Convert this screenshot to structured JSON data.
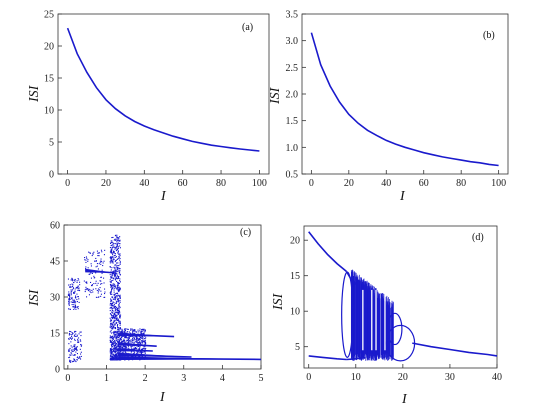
{
  "chart_data": [
    {
      "id": "a",
      "type": "line",
      "panel_label": "(a)",
      "xlabel": "I",
      "ylabel": "ISI",
      "xlim": [
        -5,
        105
      ],
      "ylim": [
        0,
        25
      ],
      "xticks": [
        "0",
        "20",
        "40",
        "60",
        "80",
        "100"
      ],
      "xtick_values": [
        0,
        20,
        40,
        60,
        80,
        100
      ],
      "yticks": [
        "0",
        "5",
        "10",
        "15",
        "20",
        "25"
      ],
      "ytick_values": [
        0,
        5,
        10,
        15,
        20,
        25
      ],
      "color": "#1a1acc",
      "series": [
        {
          "x": [
            0,
            5,
            10,
            15,
            20,
            25,
            30,
            35,
            40,
            45,
            50,
            55,
            60,
            65,
            70,
            75,
            80,
            85,
            90,
            95,
            100
          ],
          "y": [
            22.8,
            18.8,
            15.9,
            13.5,
            11.6,
            10.2,
            9.1,
            8.2,
            7.5,
            6.9,
            6.4,
            5.9,
            5.5,
            5.1,
            4.8,
            4.5,
            4.3,
            4.1,
            3.9,
            3.75,
            3.6
          ]
        }
      ]
    },
    {
      "id": "b",
      "type": "line",
      "panel_label": "(b)",
      "xlabel": "I",
      "ylabel": "ISI",
      "xlim": [
        -5,
        105
      ],
      "ylim": [
        0.5,
        3.5
      ],
      "xticks": [
        "0",
        "20",
        "40",
        "60",
        "80",
        "100"
      ],
      "xtick_values": [
        0,
        20,
        40,
        60,
        80,
        100
      ],
      "yticks": [
        "0.5",
        "1.0",
        "1.5",
        "2.0",
        "2.5",
        "3.0",
        "3.5"
      ],
      "ytick_values": [
        0.5,
        1.0,
        1.5,
        2.0,
        2.5,
        3.0,
        3.5
      ],
      "color": "#1a1acc",
      "series": [
        {
          "x": [
            0,
            5,
            10,
            15,
            20,
            25,
            30,
            35,
            40,
            45,
            50,
            55,
            60,
            65,
            70,
            75,
            80,
            85,
            90,
            95,
            100
          ],
          "y": [
            3.15,
            2.55,
            2.15,
            1.85,
            1.62,
            1.45,
            1.32,
            1.22,
            1.13,
            1.06,
            1.0,
            0.95,
            0.9,
            0.86,
            0.82,
            0.79,
            0.76,
            0.73,
            0.71,
            0.68,
            0.66
          ]
        }
      ]
    },
    {
      "id": "c",
      "type": "scatter",
      "panel_label": "(c)",
      "xlabel": "I",
      "ylabel": "ISI",
      "xlim": [
        -0.1,
        5
      ],
      "ylim": [
        0,
        60
      ],
      "xticks": [
        "0",
        "1",
        "2",
        "3",
        "4",
        "5"
      ],
      "xtick_values": [
        0,
        1,
        2,
        3,
        4,
        5
      ],
      "yticks": [
        "0",
        "15",
        "30",
        "45",
        "60"
      ],
      "ytick_values": [
        0,
        15,
        30,
        45,
        60
      ],
      "color": "#1a1acc",
      "clusters": [
        {
          "x": [
            0.0,
            0.35
          ],
          "y": [
            3,
            16
          ]
        },
        {
          "x": [
            0.0,
            0.3
          ],
          "y": [
            25,
            38
          ]
        },
        {
          "x": [
            0.4,
            0.95
          ],
          "y": [
            30,
            50
          ]
        },
        {
          "x": [
            1.08,
            1.35
          ],
          "y": [
            4,
            56
          ]
        },
        {
          "x": [
            1.35,
            2.0
          ],
          "y": [
            4,
            17
          ]
        }
      ],
      "branches": [
        {
          "x": [
            0.45,
            1.25
          ],
          "y": [
            41,
            40
          ]
        },
        {
          "x": [
            1.3,
            2.75
          ],
          "y": [
            14.5,
            13.5
          ]
        },
        {
          "x": [
            1.3,
            2.3
          ],
          "y": [
            10.5,
            9.5
          ]
        },
        {
          "x": [
            1.3,
            2.2
          ],
          "y": [
            8,
            7.5
          ]
        },
        {
          "x": [
            1.3,
            3.2
          ],
          "y": [
            6,
            5
          ]
        },
        {
          "x": [
            1.3,
            5.0
          ],
          "y": [
            4.5,
            4
          ]
        }
      ]
    },
    {
      "id": "d",
      "type": "line",
      "panel_label": "(d)",
      "xlabel": "I",
      "ylabel": "ISI",
      "xlim": [
        -1,
        40
      ],
      "ylim": [
        2,
        22
      ],
      "xticks": [
        "0",
        "10",
        "20",
        "30",
        "40"
      ],
      "xtick_values": [
        0,
        10,
        20,
        30,
        40
      ],
      "yticks": [
        "5",
        "10",
        "15",
        "20"
      ],
      "ytick_values": [
        5,
        10,
        15,
        20
      ],
      "color": "#1a1acc",
      "series": [
        {
          "x": [
            0,
            2,
            4,
            6,
            8
          ],
          "y": [
            21.2,
            19.5,
            18.0,
            16.7,
            15.6
          ]
        },
        {
          "x": [
            22,
            26,
            30,
            34,
            38,
            40
          ],
          "y": [
            5.5,
            5.0,
            4.6,
            4.2,
            3.9,
            3.7
          ]
        },
        {
          "x": [
            0,
            3,
            6,
            8
          ],
          "y": [
            3.7,
            3.5,
            3.3,
            3.2
          ]
        }
      ],
      "chaos_region": {
        "x": [
          8,
          18
        ],
        "y": [
          3,
          15
        ]
      },
      "loops": [
        {
          "cx": 8.2,
          "cy": 9.5,
          "rx": 1.2,
          "ry": 6
        },
        {
          "cx": 19.5,
          "cy": 5.5,
          "rx": 3,
          "ry": 2.5
        },
        {
          "cx": 18.3,
          "cy": 7.5,
          "rx": 1.5,
          "ry": 2.2
        }
      ]
    }
  ]
}
